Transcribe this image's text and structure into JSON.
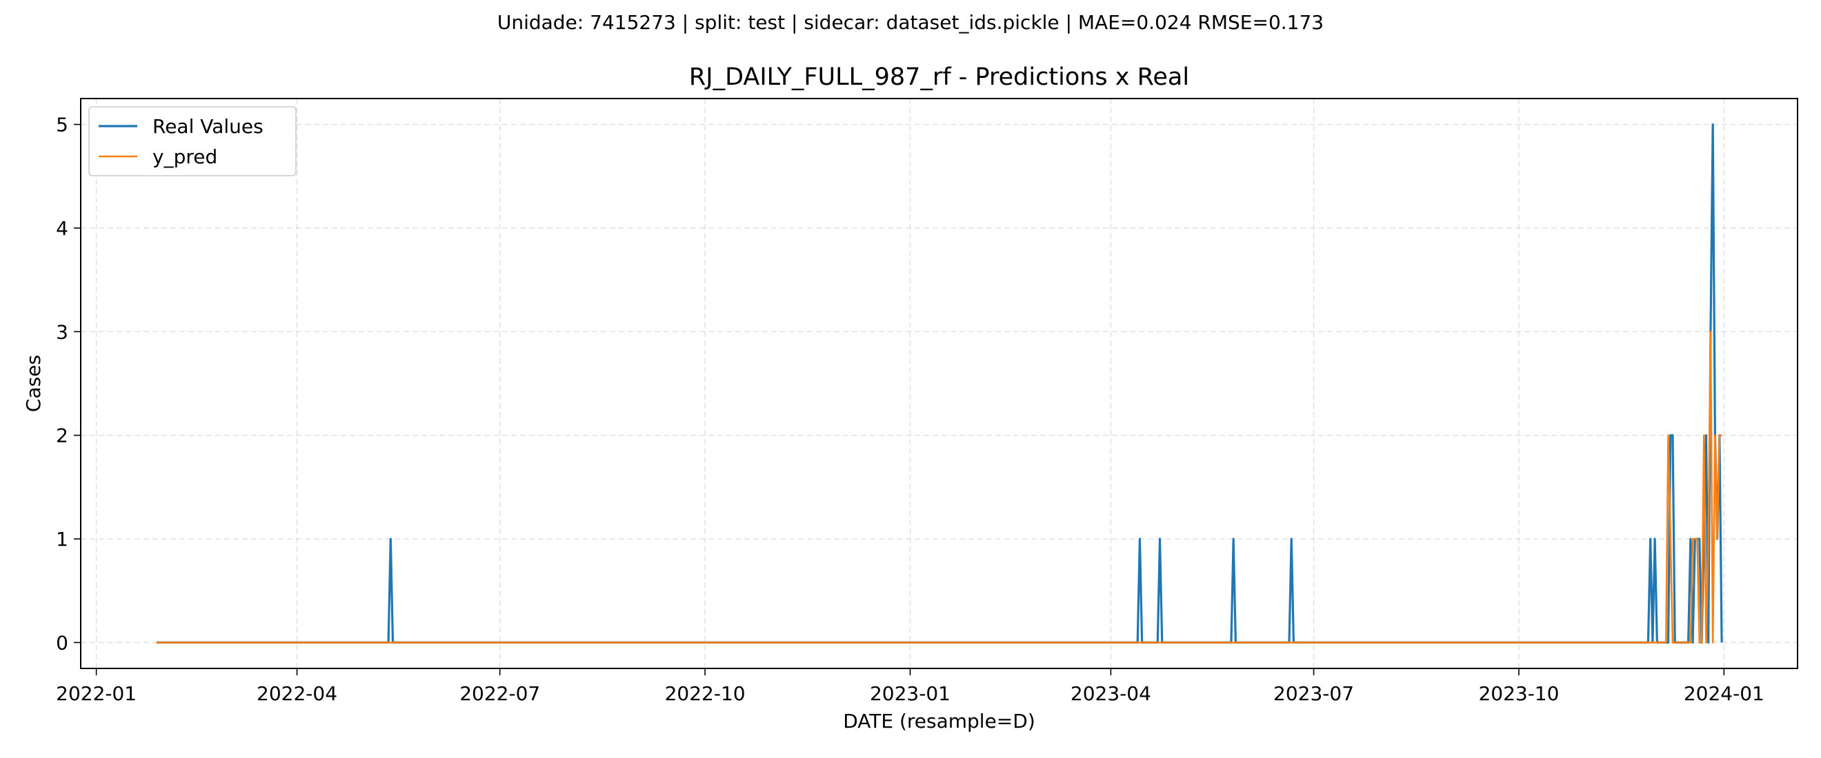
{
  "suptitle": "Unidade: 7415273 | split: test | sidecar: dataset_ids.pickle | MAE=0.024  RMSE=0.173",
  "chart_data": {
    "type": "line",
    "title": "RJ_DAILY_FULL_987_rf - Predictions x Real",
    "xlabel": "DATE (resample=D)",
    "ylabel": "Cases",
    "x_range": [
      "2021-12-25",
      "2024-02-03"
    ],
    "ylim": [
      -0.25,
      5.25
    ],
    "x_ticks": [
      "2022-01",
      "2022-04",
      "2022-07",
      "2022-10",
      "2023-01",
      "2023-04",
      "2023-07",
      "2023-10",
      "2024-01"
    ],
    "y_ticks": [
      0,
      1,
      2,
      3,
      4,
      5
    ],
    "grid": true,
    "legend_position": "top-left",
    "series": [
      {
        "name": "Real Values",
        "color": "#1f77b4",
        "points": [
          [
            "2022-01-28",
            0
          ],
          [
            "2022-05-12",
            0
          ],
          [
            "2022-05-13",
            1
          ],
          [
            "2022-05-14",
            0
          ],
          [
            "2023-04-13",
            0
          ],
          [
            "2023-04-14",
            1
          ],
          [
            "2023-04-15",
            0
          ],
          [
            "2023-04-22",
            0
          ],
          [
            "2023-04-23",
            1
          ],
          [
            "2023-04-24",
            0
          ],
          [
            "2023-05-25",
            0
          ],
          [
            "2023-05-26",
            1
          ],
          [
            "2023-05-27",
            0
          ],
          [
            "2023-06-20",
            0
          ],
          [
            "2023-06-21",
            1
          ],
          [
            "2023-06-22",
            0
          ],
          [
            "2023-11-28",
            0
          ],
          [
            "2023-11-29",
            1
          ],
          [
            "2023-11-30",
            0
          ],
          [
            "2023-12-01",
            1
          ],
          [
            "2023-12-02",
            0
          ],
          [
            "2023-12-07",
            0
          ],
          [
            "2023-12-08",
            2
          ],
          [
            "2023-12-09",
            2
          ],
          [
            "2023-12-10",
            0
          ],
          [
            "2023-12-16",
            0
          ],
          [
            "2023-12-17",
            1
          ],
          [
            "2023-12-18",
            0
          ],
          [
            "2023-12-19",
            1
          ],
          [
            "2023-12-20",
            1
          ],
          [
            "2023-12-21",
            1
          ],
          [
            "2023-12-22",
            0
          ],
          [
            "2023-12-24",
            2
          ],
          [
            "2023-12-25",
            0
          ],
          [
            "2023-12-26",
            3
          ],
          [
            "2023-12-27",
            5
          ],
          [
            "2023-12-28",
            2
          ],
          [
            "2023-12-29",
            1
          ],
          [
            "2023-12-30",
            2
          ],
          [
            "2023-12-31",
            0
          ]
        ]
      },
      {
        "name": "y_pred",
        "color": "#ff7f0e",
        "points": [
          [
            "2022-01-28",
            0
          ],
          [
            "2023-12-06",
            0
          ],
          [
            "2023-12-07",
            2
          ],
          [
            "2023-12-08",
            1
          ],
          [
            "2023-12-09",
            0
          ],
          [
            "2023-12-17",
            0
          ],
          [
            "2023-12-18",
            1
          ],
          [
            "2023-12-19",
            1
          ],
          [
            "2023-12-20",
            1
          ],
          [
            "2023-12-21",
            0
          ],
          [
            "2023-12-22",
            0
          ],
          [
            "2023-12-23",
            2
          ],
          [
            "2023-12-24",
            0
          ],
          [
            "2023-12-25",
            1
          ],
          [
            "2023-12-26",
            3
          ],
          [
            "2023-12-27",
            0
          ],
          [
            "2023-12-28",
            2
          ],
          [
            "2023-12-29",
            1
          ],
          [
            "2023-12-30",
            2
          ],
          [
            "2023-12-31",
            2
          ]
        ]
      }
    ]
  }
}
